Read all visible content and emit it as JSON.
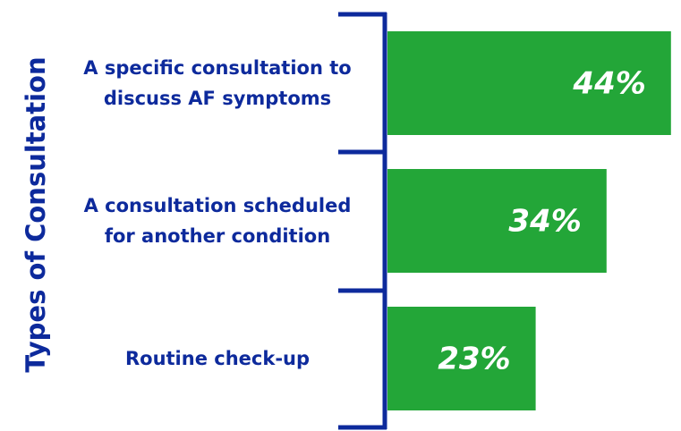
{
  "chart_data": {
    "type": "bar",
    "orientation": "horizontal",
    "y_label": "Types of Consultation",
    "categories": [
      "A specific consultation to discuss AF symptoms",
      "A consultation scheduled for another condition",
      "Routine check-up"
    ],
    "values": [
      44,
      34,
      23
    ],
    "value_labels": [
      "44%",
      "34%",
      "23%"
    ],
    "color": "#23a638"
  }
}
